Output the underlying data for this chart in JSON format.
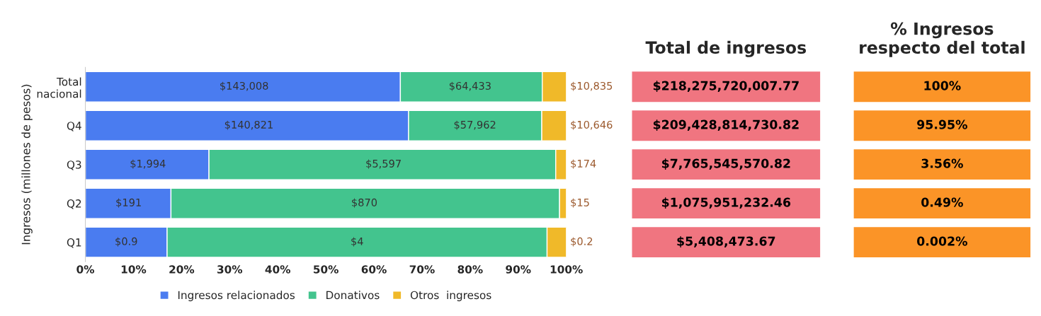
{
  "chart_data": [
    {
      "type": "bar",
      "orientation": "horizontal",
      "stacked": true,
      "ylabel": "Ingresos (millones de pesos)",
      "categories": [
        "Total\nnacional",
        "Q4",
        "Q3",
        "Q2",
        "Q1"
      ],
      "series": [
        {
          "name": "Ingresos relacionados",
          "color": "#4a7cf0",
          "values": [
            65.5,
            67.2,
            25.7,
            17.8,
            17
          ]
        },
        {
          "name": "Donativos",
          "color": "#43c48e",
          "values": [
            29.5,
            27.7,
            72.1,
            80.8,
            79
          ]
        },
        {
          "name": "Otros  ingresos",
          "color": "#f0b929",
          "values": [
            5.0,
            5.1,
            2.2,
            1.4,
            4
          ]
        }
      ],
      "annotations": [
        {
          "text": "$143,008",
          "x": 33,
          "y": "Total\nnacional"
        },
        {
          "text": "$64,433",
          "x": 80,
          "y": "Total\nnacional"
        },
        {
          "text": "$10,835",
          "x": 100,
          "y": "Total\nnacional"
        },
        {
          "text": "$140,821",
          "x": 34,
          "y": "Q4"
        },
        {
          "text": "$57,962",
          "x": 81,
          "y": "Q4"
        },
        {
          "text": "$10,646",
          "x": 100,
          "y": "Q4"
        },
        {
          "text": "$1,994",
          "x": 13,
          "y": "Q3"
        },
        {
          "text": "$5,597",
          "x": 62,
          "y": "Q3"
        },
        {
          "text": "$174",
          "x": 100,
          "y": "Q3"
        },
        {
          "text": "$191",
          "x": 9,
          "y": "Q2"
        },
        {
          "text": "$870",
          "x": 58,
          "y": "Q2"
        },
        {
          "text": "$15",
          "x": 100,
          "y": "Q2"
        },
        {
          "text": "$0.9",
          "x": 8.5,
          "y": "Q1"
        },
        {
          "text": "$4",
          "x": 56.5,
          "y": "Q1"
        },
        {
          "text": "$0.2",
          "x": 100,
          "y": "Q1"
        }
      ],
      "xlim": [
        0,
        100
      ],
      "xticks": [
        {
          "value": 0,
          "label": "0%"
        },
        {
          "value": 10,
          "label": "10%"
        },
        {
          "value": 20,
          "label": "20%"
        },
        {
          "value": 30,
          "label": "30%"
        },
        {
          "value": 40,
          "label": "40%"
        },
        {
          "value": 50,
          "label": "50%"
        },
        {
          "value": 60,
          "label": "60%"
        },
        {
          "value": 70,
          "label": "70%"
        },
        {
          "value": 80,
          "label": "80%"
        },
        {
          "value": 90,
          "label": "90%"
        },
        {
          "value": 100,
          "label": "100%"
        }
      ],
      "legend": "bottom"
    },
    {
      "type": "other",
      "title": "Total de ingresos",
      "color": "#f07580",
      "annotations": [
        "$218,275,720,007.77",
        "$209,428,814,730.82",
        "$7,765,545,570.82",
        "$1,075,951,232.46",
        "$5,408,473.67"
      ]
    },
    {
      "type": "other",
      "title": "% Ingresos\nrespecto del total",
      "color": "#fb9427",
      "annotations": [
        "100%",
        "95.95%",
        "3.56%",
        "0.49%",
        "0.002%"
      ]
    }
  ]
}
